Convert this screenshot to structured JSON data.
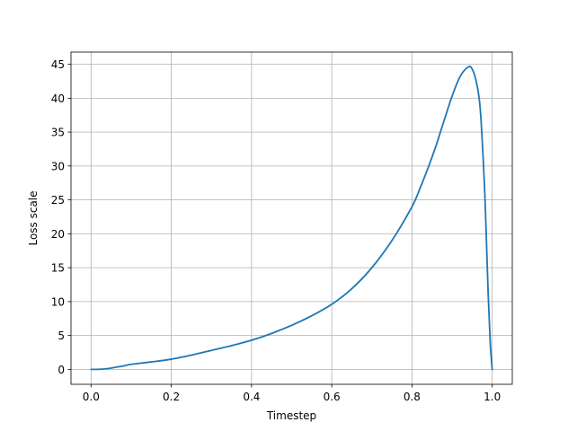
{
  "chart_data": {
    "type": "line",
    "title": "",
    "xlabel": "Timestep",
    "ylabel": "Loss scale",
    "xlim": [
      -0.05,
      1.05
    ],
    "ylim": [
      -2.2,
      46.8
    ],
    "xticks": [
      0.0,
      0.2,
      0.4,
      0.6,
      0.8,
      1.0
    ],
    "xtick_labels": [
      "0.0",
      "0.2",
      "0.4",
      "0.6",
      "0.8",
      "1.0"
    ],
    "yticks": [
      0,
      5,
      10,
      15,
      20,
      25,
      30,
      35,
      40,
      45
    ],
    "ytick_labels": [
      "0",
      "5",
      "10",
      "15",
      "20",
      "25",
      "30",
      "35",
      "40",
      "45"
    ],
    "grid": true,
    "legend": "none",
    "colors": {
      "line": "#1f77b4",
      "grid": "#b0b0b0",
      "axes": "#000000"
    },
    "series": [
      {
        "x": [
          0.0,
          0.02,
          0.04,
          0.06,
          0.08,
          0.1,
          0.15,
          0.2,
          0.25,
          0.3,
          0.35,
          0.4,
          0.45,
          0.5,
          0.55,
          0.6,
          0.65,
          0.7,
          0.75,
          0.8,
          0.82,
          0.84,
          0.86,
          0.88,
          0.9,
          0.92,
          0.94,
          0.95,
          0.96,
          0.97,
          0.98,
          0.985,
          0.99,
          0.995,
          1.0
        ],
        "values": [
          0.0,
          0.02,
          0.1,
          0.3,
          0.5,
          0.75,
          1.1,
          1.5,
          2.1,
          2.8,
          3.5,
          4.3,
          5.3,
          6.5,
          7.9,
          9.6,
          11.9,
          15.0,
          19.0,
          24.0,
          26.7,
          29.7,
          33.0,
          36.7,
          40.3,
          43.2,
          44.6,
          44.3,
          42.5,
          38.5,
          28.0,
          20.0,
          11.0,
          4.0,
          0.0
        ]
      }
    ]
  }
}
